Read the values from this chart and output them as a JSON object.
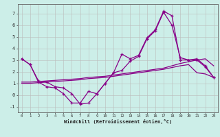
{
  "xlabel": "Windchill (Refroidissement éolien,°C)",
  "bg_color": "#cceee8",
  "line_color": "#880088",
  "grid_color": "#bbbbbb",
  "xlim": [
    -0.5,
    23.5
  ],
  "ylim": [
    -1.5,
    7.8
  ],
  "yticks": [
    -1,
    0,
    1,
    2,
    3,
    4,
    5,
    6,
    7
  ],
  "xticks": [
    0,
    1,
    2,
    3,
    4,
    5,
    6,
    7,
    8,
    9,
    10,
    11,
    12,
    13,
    14,
    15,
    16,
    17,
    18,
    19,
    20,
    21,
    22,
    23
  ],
  "line1_x": [
    0,
    1,
    2,
    3,
    4,
    5,
    6,
    7,
    8,
    9,
    10,
    11,
    12,
    13,
    14,
    15,
    16,
    17,
    18,
    19,
    20,
    21,
    22,
    23
  ],
  "line1_y": [
    3.1,
    2.6,
    1.1,
    0.7,
    0.6,
    0.1,
    -0.7,
    -0.7,
    0.3,
    0.1,
    1.0,
    1.9,
    3.5,
    3.1,
    3.4,
    4.9,
    5.6,
    7.2,
    6.8,
    3.0,
    3.0,
    3.1,
    2.5,
    1.5
  ],
  "line2_x": [
    0,
    1,
    2,
    3,
    4,
    5,
    6,
    7,
    8,
    9,
    10,
    11,
    12,
    13,
    14,
    15,
    16,
    17,
    18,
    19,
    20,
    21,
    22,
    23
  ],
  "line2_y": [
    3.1,
    2.6,
    1.2,
    1.1,
    0.7,
    0.6,
    0.1,
    -0.8,
    -0.7,
    0.1,
    1.0,
    1.9,
    2.1,
    2.9,
    3.3,
    4.8,
    5.5,
    7.1,
    6.0,
    3.2,
    3.0,
    3.0,
    2.4,
    1.5
  ],
  "line3_x": [
    0,
    1,
    2,
    3,
    4,
    5,
    6,
    7,
    8,
    9,
    10,
    11,
    12,
    13,
    14,
    15,
    16,
    17,
    18,
    19,
    20,
    21,
    22,
    23
  ],
  "line3_y": [
    1.1,
    1.1,
    1.15,
    1.2,
    1.25,
    1.3,
    1.35,
    1.4,
    1.5,
    1.55,
    1.6,
    1.7,
    1.8,
    1.9,
    2.0,
    2.1,
    2.2,
    2.3,
    2.5,
    2.7,
    2.85,
    3.0,
    3.1,
    2.5
  ],
  "line4_x": [
    0,
    1,
    2,
    3,
    4,
    5,
    6,
    7,
    8,
    9,
    10,
    11,
    12,
    13,
    14,
    15,
    16,
    17,
    18,
    19,
    20,
    21,
    22,
    23
  ],
  "line4_y": [
    1.0,
    1.0,
    1.05,
    1.1,
    1.15,
    1.2,
    1.25,
    1.3,
    1.4,
    1.45,
    1.5,
    1.6,
    1.7,
    1.8,
    1.9,
    2.0,
    2.1,
    2.2,
    2.35,
    2.5,
    2.6,
    1.9,
    1.8,
    1.5
  ]
}
